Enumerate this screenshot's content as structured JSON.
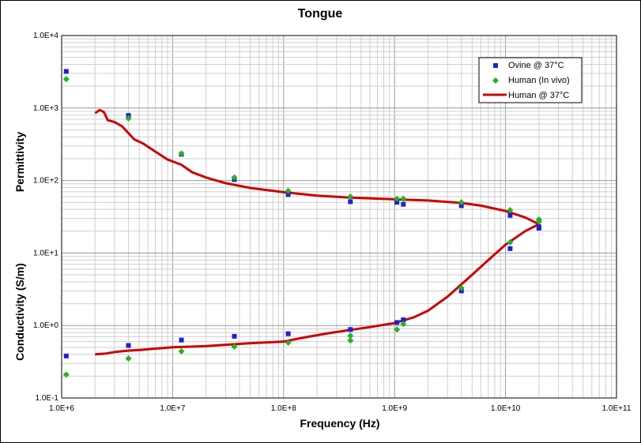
{
  "chart_data": {
    "type": "scatter",
    "title": "Tongue",
    "xlabel": "Frequency (Hz)",
    "ylabel_top": "Permittivity",
    "ylabel_bottom": "Conductivity (S/m)",
    "xscale": "log",
    "yscale": "log",
    "xlim": [
      1000000,
      100000000000
    ],
    "ylim": [
      0.1,
      10000
    ],
    "x_ticks": [
      "1.0E+6",
      "1.0E+7",
      "1.0E+8",
      "1.0E+9",
      "1.0E+10",
      "1.0E+11"
    ],
    "y_ticks": [
      "1.0E-1",
      "1.0E+0",
      "1.0E+1",
      "1.0E+2",
      "1.0E+3",
      "1.0E+4"
    ],
    "grid": true,
    "legend_position": "top-right",
    "series": [
      {
        "name": "Ovine @ 37°C",
        "marker": "square",
        "color": "#1f1fd6",
        "points": [
          [
            1100000,
            3200
          ],
          [
            4000000,
            790
          ],
          [
            12000000,
            230
          ],
          [
            36000000,
            103
          ],
          [
            110000000,
            64
          ],
          [
            400000000,
            51
          ],
          [
            1050000000,
            50
          ],
          [
            1200000000,
            47
          ],
          [
            4000000000,
            45
          ],
          [
            11000000000,
            33
          ],
          [
            20000000000,
            22
          ],
          [
            1100000,
            0.38
          ],
          [
            4000000,
            0.53
          ],
          [
            12000000,
            0.63
          ],
          [
            36000000,
            0.71
          ],
          [
            110000000,
            0.77
          ],
          [
            400000000,
            0.88
          ],
          [
            1050000000,
            1.1
          ],
          [
            1200000000,
            1.2
          ],
          [
            4000000000,
            3.0
          ],
          [
            11000000000,
            11.5
          ],
          [
            20000000000,
            23
          ]
        ]
      },
      {
        "name": "Human (In vivo)",
        "marker": "diamond",
        "color": "#22b422",
        "points": [
          [
            1100000,
            2500
          ],
          [
            4000000,
            720
          ],
          [
            12000000,
            235
          ],
          [
            36000000,
            110
          ],
          [
            110000000,
            72
          ],
          [
            400000000,
            60
          ],
          [
            1050000000,
            56
          ],
          [
            1200000000,
            56
          ],
          [
            4000000000,
            50
          ],
          [
            11000000000,
            39
          ],
          [
            20000000000,
            29
          ],
          [
            1100000,
            0.21
          ],
          [
            4000000,
            0.35
          ],
          [
            12000000,
            0.44
          ],
          [
            36000000,
            0.51
          ],
          [
            110000000,
            0.58
          ],
          [
            400000000,
            0.62
          ],
          [
            400000000,
            0.72
          ],
          [
            1050000000,
            0.88
          ],
          [
            1200000000,
            1.05
          ],
          [
            4000000000,
            3.3
          ],
          [
            11000000000,
            14
          ],
          [
            20000000000,
            27
          ]
        ]
      },
      {
        "name": "Human @ 37°C",
        "marker": "line",
        "color": "#cc0000",
        "points": [
          [
            2000000,
            850
          ],
          [
            2200000,
            940
          ],
          [
            2400000,
            880
          ],
          [
            2600000,
            680
          ],
          [
            3000000,
            640
          ],
          [
            3500000,
            560
          ],
          [
            4000000,
            450
          ],
          [
            4500000,
            370
          ],
          [
            5500000,
            320
          ],
          [
            7000000,
            250
          ],
          [
            9000000,
            195
          ],
          [
            12000000,
            165
          ],
          [
            15000000,
            130
          ],
          [
            20000000,
            110
          ],
          [
            30000000,
            92
          ],
          [
            50000000,
            79
          ],
          [
            100000000,
            69
          ],
          [
            200000000,
            62
          ],
          [
            400000000,
            58
          ],
          [
            1000000000,
            55
          ],
          [
            2000000000,
            53
          ],
          [
            4000000000,
            49
          ],
          [
            6000000000,
            45
          ],
          [
            10000000000,
            38
          ],
          [
            15000000000,
            31
          ],
          [
            20000000000,
            25
          ],
          [
            20000000000,
            25
          ],
          [
            15000000000,
            20
          ],
          [
            10000000000,
            13
          ],
          [
            7000000000,
            8
          ],
          [
            5000000000,
            5
          ],
          [
            3000000000,
            2.5
          ],
          [
            2000000000,
            1.6
          ],
          [
            1500000000,
            1.3
          ],
          [
            1000000000,
            1.08
          ],
          [
            600000000,
            0.95
          ],
          [
            400000000,
            0.87
          ],
          [
            250000000,
            0.78
          ],
          [
            150000000,
            0.68
          ],
          [
            100000000,
            0.6
          ],
          [
            50000000,
            0.57
          ],
          [
            20000000,
            0.52
          ],
          [
            10000000,
            0.5
          ],
          [
            6000000,
            0.47
          ],
          [
            5000000,
            0.46
          ],
          [
            4000000,
            0.45
          ],
          [
            3000000,
            0.43
          ],
          [
            2500000,
            0.41
          ],
          [
            2000000,
            0.4
          ]
        ]
      }
    ]
  }
}
